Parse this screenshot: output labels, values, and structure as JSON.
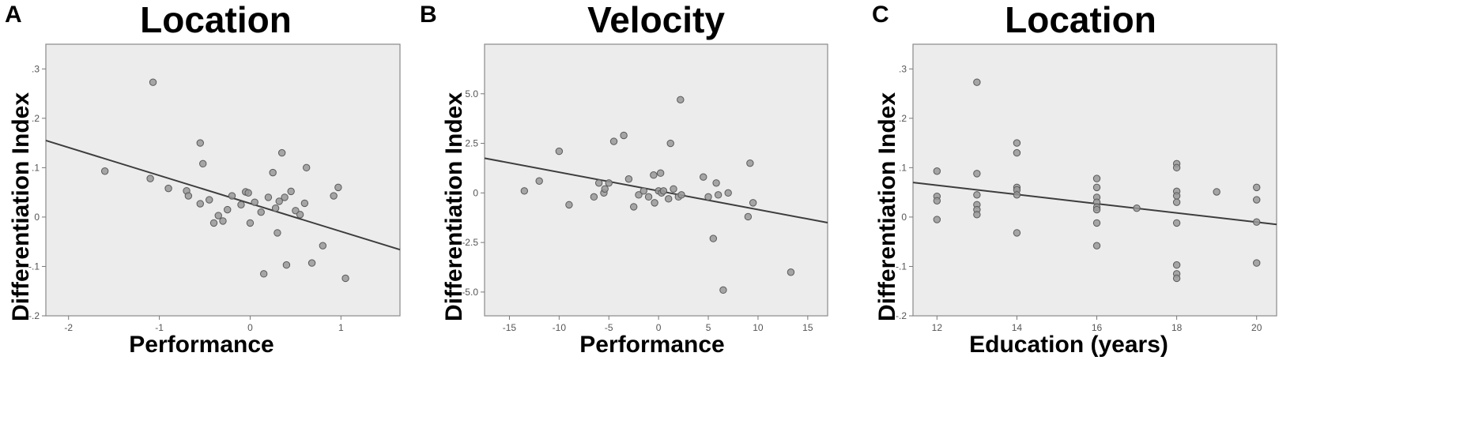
{
  "chart_data": [
    {
      "panel": "A",
      "type": "scatter",
      "title": "Location",
      "xlabel": "Performance",
      "ylabel": "Differentiation Index",
      "xlim": [
        -2.25,
        1.65
      ],
      "ylim": [
        -0.2,
        0.35
      ],
      "x_ticks": [
        -2,
        -1,
        0,
        1
      ],
      "x_tick_labels": [
        "-2",
        "-1",
        "0",
        "1"
      ],
      "y_ticks": [
        -0.2,
        -0.1,
        0,
        0.1,
        0.2,
        0.3
      ],
      "y_tick_labels": [
        "-.2",
        "-.1",
        "0",
        ".1",
        ".2",
        ".3"
      ],
      "points": [
        [
          -1.6,
          0.093
        ],
        [
          -1.07,
          0.273
        ],
        [
          -1.1,
          0.078
        ],
        [
          -0.9,
          0.058
        ],
        [
          -0.7,
          0.053
        ],
        [
          -0.68,
          0.043
        ],
        [
          -0.55,
          0.15
        ],
        [
          -0.52,
          0.108
        ],
        [
          -0.55,
          0.027
        ],
        [
          -0.45,
          0.035
        ],
        [
          -0.4,
          -0.012
        ],
        [
          -0.35,
          0.003
        ],
        [
          -0.3,
          -0.008
        ],
        [
          -0.25,
          0.015
        ],
        [
          -0.2,
          0.043
        ],
        [
          -0.1,
          0.025
        ],
        [
          -0.05,
          0.051
        ],
        [
          -0.02,
          0.049
        ],
        [
          0.0,
          -0.012
        ],
        [
          0.05,
          0.03
        ],
        [
          0.12,
          0.01
        ],
        [
          0.15,
          -0.115
        ],
        [
          0.2,
          0.04
        ],
        [
          0.25,
          0.09
        ],
        [
          0.28,
          0.018
        ],
        [
          0.3,
          -0.032
        ],
        [
          0.32,
          0.032
        ],
        [
          0.35,
          0.13
        ],
        [
          0.38,
          0.04
        ],
        [
          0.4,
          -0.097
        ],
        [
          0.45,
          0.052
        ],
        [
          0.5,
          0.013
        ],
        [
          0.55,
          0.005
        ],
        [
          0.6,
          0.028
        ],
        [
          0.62,
          0.1
        ],
        [
          0.68,
          -0.093
        ],
        [
          0.8,
          -0.058
        ],
        [
          0.92,
          0.043
        ],
        [
          0.97,
          0.06
        ],
        [
          1.05,
          -0.124
        ]
      ],
      "fit_line": {
        "x": [
          -2.25,
          1.65
        ],
        "y": [
          0.155,
          -0.066
        ]
      }
    },
    {
      "panel": "B",
      "type": "scatter",
      "title": "Velocity",
      "xlabel": "Performance",
      "ylabel": "Differentiation Index",
      "xlim": [
        -17.5,
        17
      ],
      "ylim": [
        -6.2,
        7.5
      ],
      "x_ticks": [
        -15,
        -10,
        -5,
        0,
        5,
        10,
        15
      ],
      "x_tick_labels": [
        "-15",
        "-10",
        "-5",
        "0",
        "5",
        "10",
        "15"
      ],
      "y_ticks": [
        -5,
        -2.5,
        0,
        2.5,
        5
      ],
      "y_tick_labels": [
        "-5.0",
        "-2.5",
        "0",
        "2.5",
        "5.0"
      ],
      "points": [
        [
          -13.5,
          0.1
        ],
        [
          -12,
          0.6
        ],
        [
          -10,
          2.1
        ],
        [
          -9,
          -0.6
        ],
        [
          -6.5,
          -0.2
        ],
        [
          -6,
          0.5
        ],
        [
          -5.5,
          0.0
        ],
        [
          -5.4,
          0.2
        ],
        [
          -5,
          0.5
        ],
        [
          -4.5,
          2.6
        ],
        [
          -3.5,
          2.9
        ],
        [
          -3,
          0.7
        ],
        [
          -2.5,
          -0.7
        ],
        [
          -2,
          -0.1
        ],
        [
          -1.5,
          0.1
        ],
        [
          -1,
          -0.2
        ],
        [
          -0.5,
          0.9
        ],
        [
          -0.4,
          -0.5
        ],
        [
          0,
          0.1
        ],
        [
          0.2,
          1.0
        ],
        [
          0.3,
          0.0
        ],
        [
          0.5,
          0.1
        ],
        [
          1,
          -0.3
        ],
        [
          1.2,
          2.5
        ],
        [
          1.5,
          0.2
        ],
        [
          2,
          -0.2
        ],
        [
          2.2,
          4.7
        ],
        [
          2.3,
          -0.1
        ],
        [
          4.5,
          0.8
        ],
        [
          5,
          -0.2
        ],
        [
          5.5,
          -2.3
        ],
        [
          5.8,
          0.5
        ],
        [
          6,
          -0.1
        ],
        [
          6.5,
          -4.9
        ],
        [
          7,
          0.0
        ],
        [
          9,
          -1.2
        ],
        [
          9.2,
          1.5
        ],
        [
          9.5,
          -0.5
        ],
        [
          13.3,
          -4.0
        ]
      ],
      "fit_line": {
        "x": [
          -17.5,
          17
        ],
        "y": [
          1.75,
          -1.5
        ]
      }
    },
    {
      "panel": "C",
      "type": "scatter",
      "title": "Location",
      "xlabel": "Education (years)",
      "ylabel": "Differentiation Index",
      "xlim": [
        11.4,
        20.5
      ],
      "ylim": [
        -0.2,
        0.35
      ],
      "x_ticks": [
        12,
        14,
        16,
        18,
        20
      ],
      "x_tick_labels": [
        "12",
        "14",
        "16",
        "18",
        "20"
      ],
      "y_ticks": [
        -0.2,
        -0.1,
        0,
        0.1,
        0.2,
        0.3
      ],
      "y_tick_labels": [
        "-.2",
        "-.1",
        "0",
        ".1",
        ".2",
        ".3"
      ],
      "points": [
        [
          12,
          0.093
        ],
        [
          12,
          0.042
        ],
        [
          12,
          0.033
        ],
        [
          12,
          -0.005
        ],
        [
          13,
          0.273
        ],
        [
          13,
          0.088
        ],
        [
          13,
          0.045
        ],
        [
          13,
          0.025
        ],
        [
          13,
          0.015
        ],
        [
          13,
          0.005
        ],
        [
          14,
          0.15
        ],
        [
          14,
          0.13
        ],
        [
          14,
          0.06
        ],
        [
          14,
          0.055
        ],
        [
          14,
          0.045
        ],
        [
          14,
          -0.032
        ],
        [
          16,
          0.078
        ],
        [
          16,
          0.06
        ],
        [
          16,
          0.04
        ],
        [
          16,
          0.03
        ],
        [
          16,
          0.02
        ],
        [
          16,
          0.015
        ],
        [
          16,
          -0.012
        ],
        [
          16,
          -0.058
        ],
        [
          17,
          0.018
        ],
        [
          18,
          0.108
        ],
        [
          18,
          0.1
        ],
        [
          18,
          0.052
        ],
        [
          18,
          0.043
        ],
        [
          18,
          0.03
        ],
        [
          18,
          -0.012
        ],
        [
          18,
          -0.097
        ],
        [
          18,
          -0.115
        ],
        [
          18,
          -0.124
        ],
        [
          19,
          0.051
        ],
        [
          20,
          0.06
        ],
        [
          20,
          0.035
        ],
        [
          20,
          -0.093
        ],
        [
          20,
          -0.01
        ]
      ],
      "fit_line": {
        "x": [
          11.4,
          20.5
        ],
        "y": [
          0.07,
          -0.015
        ]
      }
    }
  ]
}
